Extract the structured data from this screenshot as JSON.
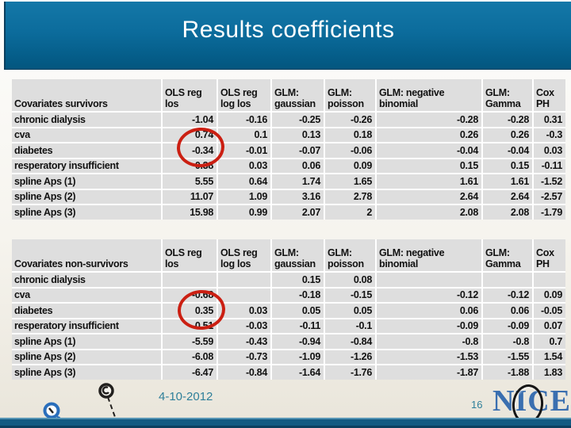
{
  "slide": {
    "title": "Results coefficients",
    "footer": {
      "date": "4-10-2012",
      "page_number": "16",
      "logo_text": "NICE"
    },
    "icons": [
      "callout-pin-blue-icon",
      "callout-pin-black-icon",
      "nice-logo-magnifier-ring-icon"
    ],
    "colors": {
      "titlebar_top": "#1478a8",
      "titlebar_bottom": "#04567e",
      "cell_background": "#dedede",
      "annotation_red": "#cb1f12",
      "footer_text": "#2e7f9a",
      "logo_blue": "#3a6fb0",
      "bottom_bar": "#135a82"
    }
  },
  "tables": [
    {
      "name": "survivors",
      "columns": [
        "Covariates survivors",
        "OLS reg los",
        "OLS reg log los",
        "GLM: gaussian",
        "GLM: poisson",
        "GLM: negative binomial",
        "GLM: Gamma",
        "Cox PH"
      ],
      "rows": [
        {
          "label": "chronic dialysis",
          "values": [
            "-1.04",
            "-0.16",
            "-0.25",
            "-0.26",
            "-0.28",
            "-0.28",
            "0.31"
          ]
        },
        {
          "label": "cva",
          "values": [
            "0.74",
            "0.1",
            "0.13",
            "0.18",
            "0.26",
            "0.26",
            "-0.3"
          ]
        },
        {
          "label": "diabetes",
          "values": [
            "-0.34",
            "-0.01",
            "-0.07",
            "-0.06",
            "-0.04",
            "-0.04",
            "0.03"
          ]
        },
        {
          "label": "resperatory insufficient",
          "values": [
            "0.38",
            "0.03",
            "0.06",
            "0.09",
            "0.15",
            "0.15",
            "-0.11"
          ]
        },
        {
          "label": "spline Aps (1)",
          "values": [
            "5.55",
            "0.64",
            "1.74",
            "1.65",
            "1.61",
            "1.61",
            "-1.52"
          ]
        },
        {
          "label": "spline Aps (2)",
          "values": [
            "11.07",
            "1.09",
            "3.16",
            "2.78",
            "2.64",
            "2.64",
            "-2.57"
          ]
        },
        {
          "label": "spline Aps (3)",
          "values": [
            "15.98",
            "0.99",
            "2.07",
            "2",
            "2.08",
            "2.08",
            "-1.79"
          ]
        }
      ]
    },
    {
      "name": "non-survivors",
      "columns": [
        "Covariates non-survivors",
        "OLS reg los",
        "OLS reg log los",
        "GLM: gaussian",
        "GLM: poisson",
        "GLM: negative binomial",
        "GLM: Gamma",
        "Cox PH"
      ],
      "rows": [
        {
          "label": "chronic dialysis",
          "values": [
            "",
            "",
            "0.15",
            "0.08",
            "",
            "",
            ""
          ]
        },
        {
          "label": "cva",
          "values": [
            "-0.68",
            "",
            "-0.18",
            "-0.15",
            "-0.12",
            "-0.12",
            "0.09"
          ]
        },
        {
          "label": "diabetes",
          "values": [
            "0.35",
            "0.03",
            "0.05",
            "0.05",
            "0.06",
            "0.06",
            "-0.05"
          ]
        },
        {
          "label": "resperatory insufficient",
          "values": [
            "-0.51",
            "-0.03",
            "-0.11",
            "-0.1",
            "-0.09",
            "-0.09",
            "0.07"
          ]
        },
        {
          "label": "spline Aps (1)",
          "values": [
            "-5.59",
            "-0.43",
            "-0.94",
            "-0.84",
            "-0.8",
            "-0.8",
            "0.7"
          ]
        },
        {
          "label": "spline Aps (2)",
          "values": [
            "-6.08",
            "-0.73",
            "-1.09",
            "-1.26",
            "-1.53",
            "-1.55",
            "1.54"
          ]
        },
        {
          "label": "spline Aps (3)",
          "values": [
            "-6.47",
            "-0.84",
            "-1.64",
            "-1.76",
            "-1.87",
            "-1.88",
            "1.83"
          ]
        }
      ]
    }
  ],
  "annotations": [
    {
      "table": "survivors",
      "row": "diabetes",
      "column": "OLS reg los",
      "circled_value": "-0.34",
      "shape": "red-ellipse"
    },
    {
      "table": "non-survivors",
      "row": "diabetes",
      "column": "OLS reg los",
      "circled_value": "0.35",
      "shape": "red-ellipse"
    }
  ]
}
